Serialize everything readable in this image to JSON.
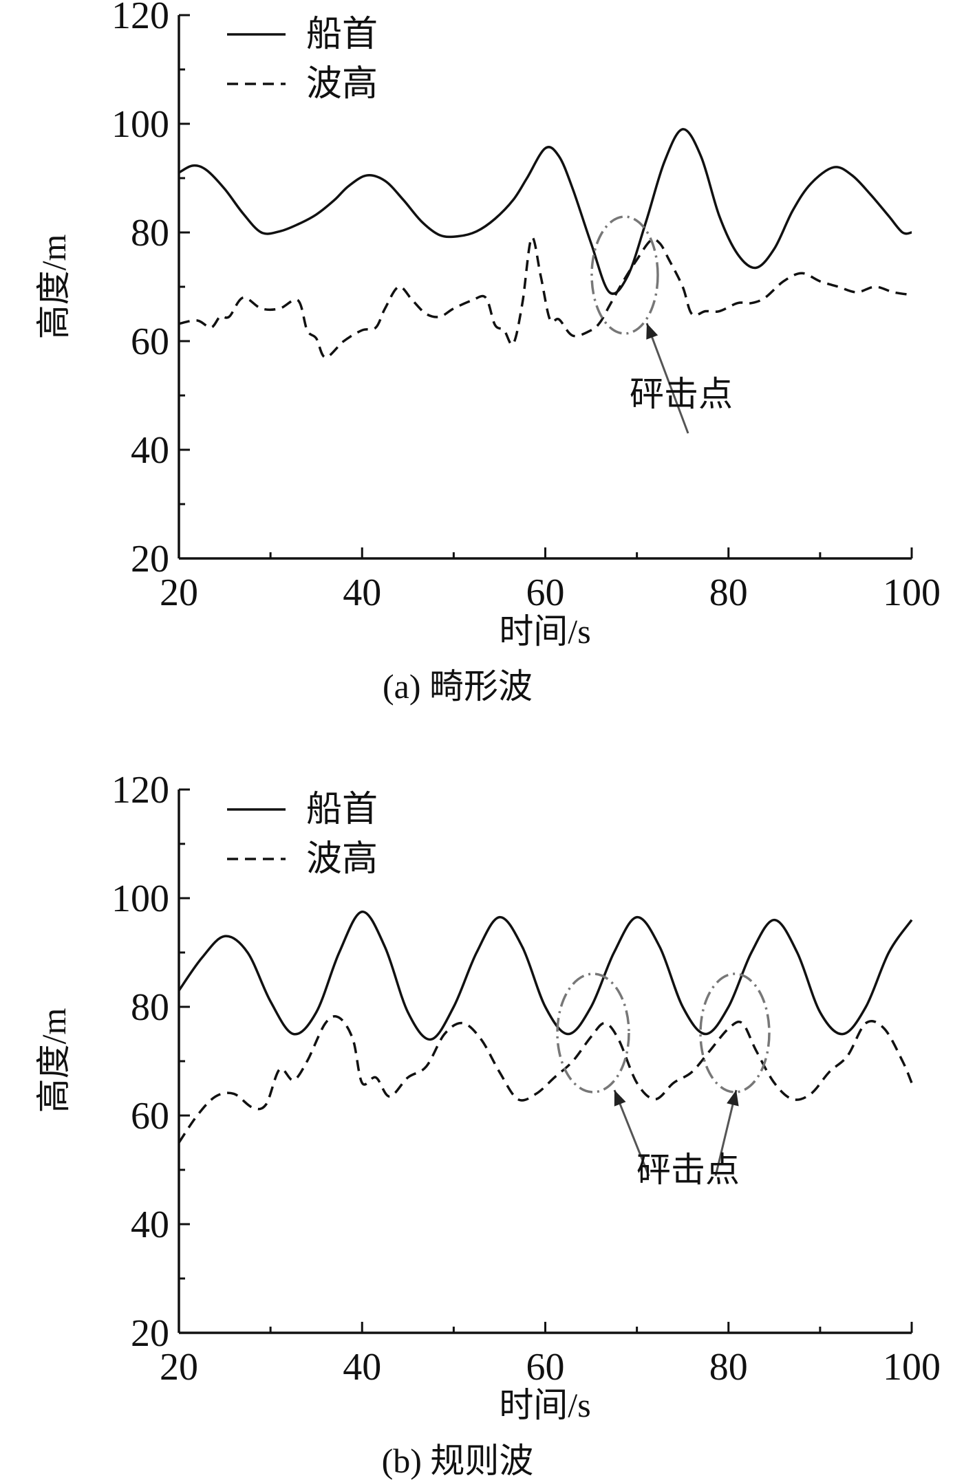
{
  "chart_data": [
    {
      "type": "line",
      "caption": "(a) 畸形波",
      "xlabel": "时间/s",
      "ylabel": "高度/m",
      "xlim": [
        20,
        100
      ],
      "ylim": [
        20,
        120
      ],
      "xticks": [
        "20",
        "40",
        "60",
        "80",
        "100"
      ],
      "yticks": [
        "20",
        "40",
        "60",
        "80",
        "100",
        "120"
      ],
      "legend": {
        "placement": "top-left",
        "entries": [
          "船首",
          "波高"
        ]
      },
      "series": [
        {
          "name": "船首",
          "style": "solid",
          "x": [
            20,
            21.5,
            23,
            25,
            27,
            29,
            31,
            33,
            35,
            37,
            38.5,
            40.5,
            42.5,
            44.5,
            46.5,
            48.5,
            50.5,
            52.5,
            54.5,
            56.5,
            58,
            60,
            61.5,
            63,
            65,
            67,
            69,
            71,
            73,
            75,
            77,
            79,
            81,
            83,
            85,
            87,
            89,
            91.5,
            93.5,
            95.5,
            97.5,
            99,
            100
          ],
          "values": [
            91,
            92.3,
            91.5,
            88,
            83.5,
            80,
            80.2,
            81.5,
            83.3,
            86,
            88.5,
            90.5,
            89.5,
            86,
            82,
            79.5,
            79.3,
            80.2,
            82.5,
            86,
            90,
            95.5,
            94,
            88,
            78,
            69,
            72,
            82,
            93,
            99,
            94,
            83,
            76,
            73.5,
            77,
            84,
            89,
            92,
            90.5,
            87,
            83,
            80,
            80
          ]
        },
        {
          "name": "波高",
          "style": "dashed",
          "x": [
            20,
            22,
            23.5,
            24.5,
            25.5,
            27,
            29,
            31,
            33,
            34,
            35,
            36,
            38,
            40,
            41.5,
            42.5,
            44,
            45.5,
            47,
            48.5,
            50,
            52,
            53.5,
            54.5,
            55.5,
            56.5,
            57.5,
            58.5,
            59.5,
            60.5,
            61.5,
            63,
            65,
            66,
            67,
            68.5,
            70,
            71.5,
            72.5,
            73.5,
            75,
            76,
            77.5,
            79,
            81,
            82.5,
            84,
            86,
            88,
            90,
            92,
            94,
            96,
            98,
            100
          ],
          "values": [
            63.2,
            63.8,
            62.5,
            64.5,
            64.5,
            68,
            66,
            66,
            67.5,
            62,
            60.5,
            57,
            60,
            62,
            62.5,
            66,
            70,
            67.5,
            65,
            64.5,
            66,
            67.5,
            68,
            63,
            62,
            59.5,
            67,
            79,
            72,
            64,
            64,
            61,
            62,
            63.5,
            66.5,
            71,
            75,
            78.5,
            78,
            75,
            70,
            65,
            65.5,
            65.5,
            67,
            67,
            68,
            71,
            72.5,
            71,
            70,
            69,
            70,
            69,
            68.5
          ]
        }
      ],
      "annotations": [
        {
          "text": "砰击点",
          "x": 69,
          "y": 72
        }
      ]
    },
    {
      "type": "line",
      "caption": "(b) 规则波",
      "xlabel": "时间/s",
      "ylabel": "高度/m",
      "xlim": [
        20,
        100
      ],
      "ylim": [
        20,
        120
      ],
      "xticks": [
        "20",
        "40",
        "60",
        "80",
        "100"
      ],
      "yticks": [
        "20",
        "40",
        "60",
        "80",
        "100",
        "120"
      ],
      "legend": {
        "placement": "top-left",
        "entries": [
          "船首",
          "波高"
        ]
      },
      "series": [
        {
          "name": "船首",
          "style": "solid",
          "x": [
            20,
            22.5,
            25,
            27.5,
            30,
            32.5,
            35,
            37.5,
            40,
            42.5,
            45,
            47.5,
            50,
            52.5,
            55,
            57.5,
            60,
            62.5,
            65,
            67.5,
            70,
            72.5,
            75,
            77.5,
            80,
            82.5,
            85,
            87.5,
            90,
            92.5,
            95,
            97.5,
            100
          ],
          "values": [
            83,
            89,
            93,
            90,
            81,
            75,
            79,
            90,
            97.5,
            91,
            79,
            74,
            80,
            90,
            96.5,
            91,
            80,
            75,
            80,
            90,
            96.5,
            91,
            80,
            75,
            80,
            90,
            96,
            90,
            79,
            75,
            80,
            90,
            96
          ]
        },
        {
          "name": "波高",
          "style": "dashed",
          "x": [
            20,
            22,
            24,
            26,
            28,
            29.5,
            31,
            32.5,
            34,
            36,
            37.5,
            39,
            40,
            41.5,
            43,
            45,
            47,
            49,
            51,
            53,
            55,
            57,
            59,
            61,
            63,
            65,
            66.5,
            68,
            70,
            72,
            74,
            76,
            78,
            80,
            81.5,
            83,
            85,
            87,
            89,
            91,
            93,
            95,
            97,
            99,
            100
          ],
          "values": [
            55,
            60,
            63.5,
            64,
            61.5,
            62,
            68.5,
            66.5,
            70,
            77,
            78,
            74,
            66,
            67,
            63.5,
            67,
            69,
            75,
            77,
            74,
            68,
            63,
            64,
            67,
            70,
            74.5,
            77,
            74,
            66,
            63,
            66,
            68,
            72,
            76,
            77,
            72,
            66,
            63,
            64,
            68,
            71,
            77,
            76,
            70,
            66
          ]
        }
      ],
      "annotations": [
        {
          "text": "砰击点",
          "x": 66,
          "y": 75
        },
        {
          "text": "砰击点",
          "x": 81,
          "y": 75
        }
      ]
    }
  ]
}
